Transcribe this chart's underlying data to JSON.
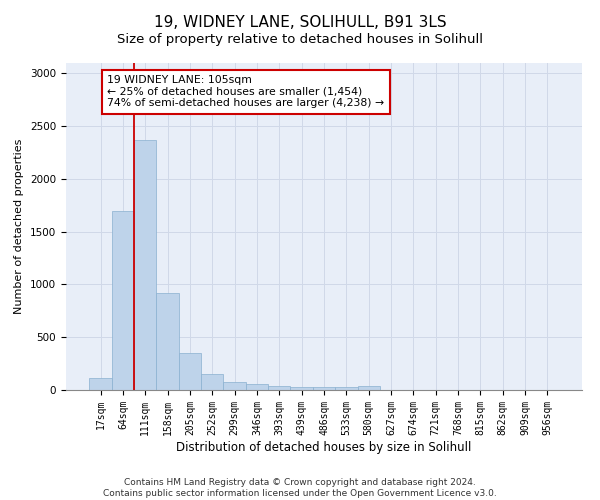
{
  "title1": "19, WIDNEY LANE, SOLIHULL, B91 3LS",
  "title2": "Size of property relative to detached houses in Solihull",
  "xlabel": "Distribution of detached houses by size in Solihull",
  "ylabel": "Number of detached properties",
  "categories": [
    "17sqm",
    "64sqm",
    "111sqm",
    "158sqm",
    "205sqm",
    "252sqm",
    "299sqm",
    "346sqm",
    "393sqm",
    "439sqm",
    "486sqm",
    "533sqm",
    "580sqm",
    "627sqm",
    "674sqm",
    "721sqm",
    "768sqm",
    "815sqm",
    "862sqm",
    "909sqm",
    "956sqm"
  ],
  "values": [
    115,
    1690,
    2370,
    920,
    350,
    155,
    80,
    60,
    40,
    25,
    25,
    25,
    40,
    0,
    0,
    0,
    0,
    0,
    0,
    0,
    0
  ],
  "bar_color": "#bed3ea",
  "bar_edge_color": "#8ab0d0",
  "annotation_label": "19 WIDNEY LANE: 105sqm",
  "annotation_line1": "← 25% of detached houses are smaller (1,454)",
  "annotation_line2": "74% of semi-detached houses are larger (4,238) →",
  "vline_color": "#cc0000",
  "box_edge_color": "#cc0000",
  "annotation_fontsize": 7.8,
  "title1_fontsize": 11,
  "title2_fontsize": 9.5,
  "xlabel_fontsize": 8.5,
  "ylabel_fontsize": 8,
  "tick_fontsize": 7,
  "footer1": "Contains HM Land Registry data © Crown copyright and database right 2024.",
  "footer2": "Contains public sector information licensed under the Open Government Licence v3.0.",
  "footer_fontsize": 6.5,
  "ylim": [
    0,
    3100
  ],
  "yticks": [
    0,
    500,
    1000,
    1500,
    2000,
    2500,
    3000
  ],
  "grid_color": "#d0d8e8",
  "bg_color": "#e8eef8"
}
